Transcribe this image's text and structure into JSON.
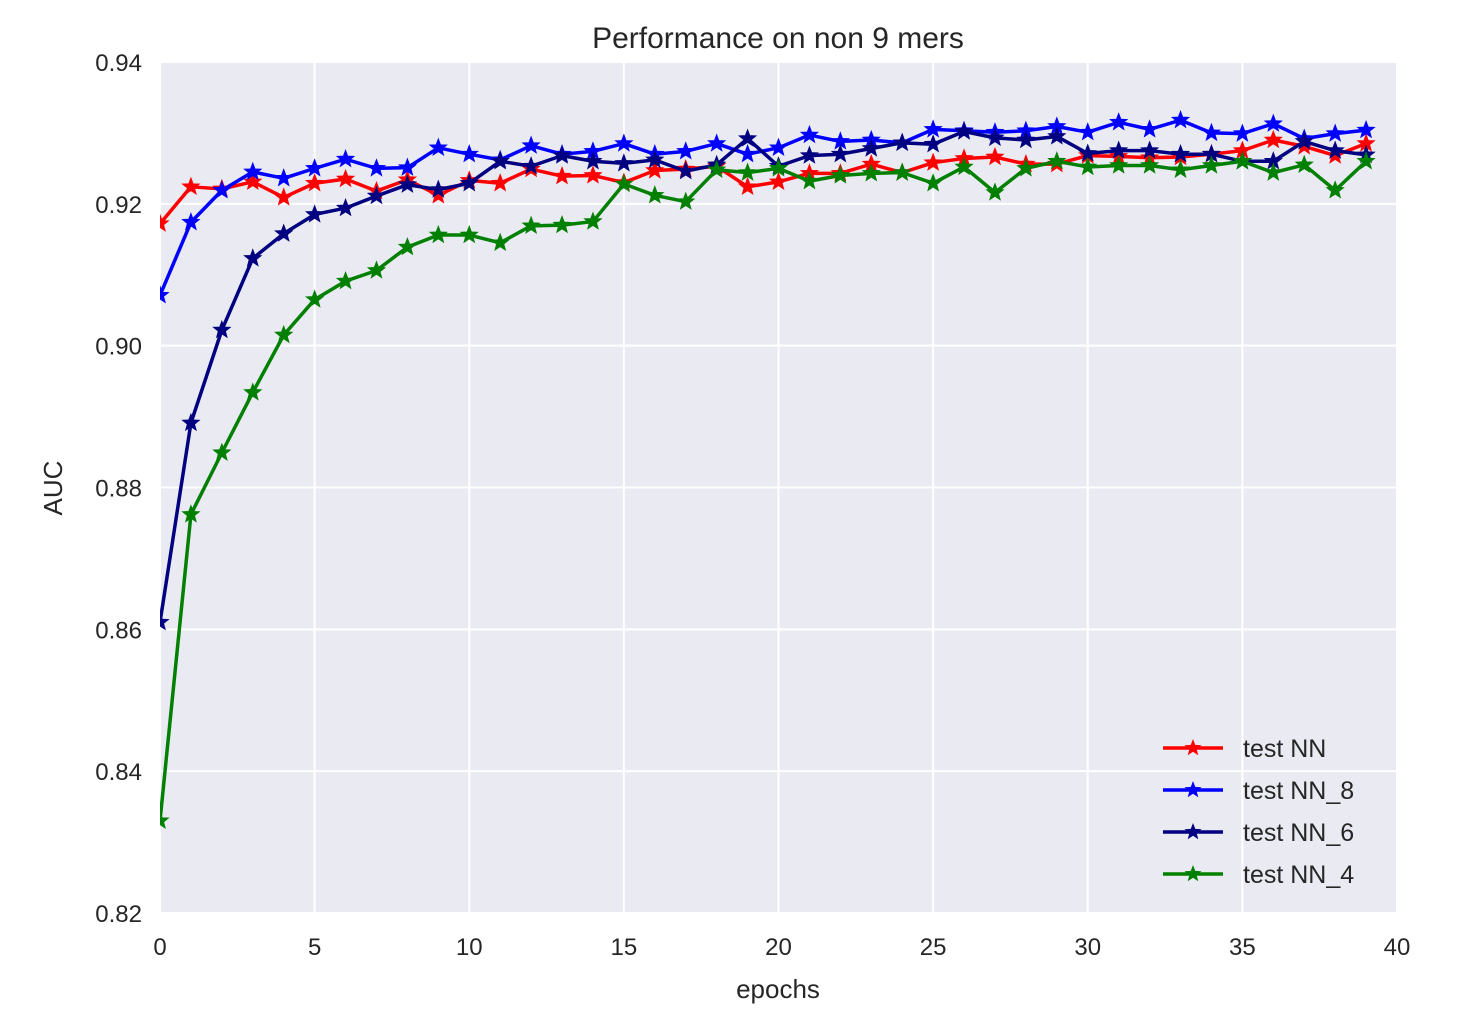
{
  "chart_data": {
    "type": "line",
    "title": "Performance on non 9 mers",
    "xlabel": "epochs",
    "ylabel": "AUC",
    "xlim": [
      0,
      40
    ],
    "ylim": [
      0.82,
      0.94
    ],
    "xticks": [
      0,
      5,
      10,
      15,
      20,
      25,
      30,
      35,
      40
    ],
    "yticks": [
      0.82,
      0.84,
      0.86,
      0.88,
      0.9,
      0.92,
      0.94
    ],
    "xtick_labels": [
      "0",
      "5",
      "10",
      "15",
      "20",
      "25",
      "30",
      "35",
      "40"
    ],
    "ytick_labels": [
      "0.82",
      "0.84",
      "0.86",
      "0.88",
      "0.90",
      "0.92",
      "0.94"
    ],
    "grid": true,
    "legend_position": "bottom-right",
    "marker": "star",
    "x": [
      0,
      1,
      2,
      3,
      4,
      5,
      6,
      7,
      8,
      9,
      10,
      11,
      12,
      13,
      14,
      15,
      16,
      17,
      18,
      19,
      20,
      21,
      22,
      23,
      24,
      25,
      26,
      27,
      28,
      29,
      30,
      31,
      32,
      33,
      34,
      35,
      36,
      37,
      38,
      39
    ],
    "series": [
      {
        "name": "test NN",
        "color": "#ff0000",
        "values": [
          0.9172,
          0.9224,
          0.9221,
          0.9231,
          0.9209,
          0.9229,
          0.9235,
          0.9218,
          0.9234,
          0.9212,
          0.9233,
          0.9229,
          0.9249,
          0.9239,
          0.924,
          0.923,
          0.9247,
          0.9249,
          0.9253,
          0.9224,
          0.9231,
          0.9243,
          0.9243,
          0.9256,
          0.9244,
          0.9258,
          0.9264,
          0.9266,
          0.9256,
          0.9256,
          0.9268,
          0.9267,
          0.9265,
          0.9266,
          0.927,
          0.9275,
          0.929,
          0.9281,
          0.9268,
          0.9285
        ]
      },
      {
        "name": "test NN_8",
        "color": "#0000ff",
        "values": [
          0.9071,
          0.9174,
          0.9219,
          0.9245,
          0.9236,
          0.925,
          0.9263,
          0.925,
          0.9251,
          0.9279,
          0.927,
          0.9262,
          0.9282,
          0.927,
          0.9274,
          0.9285,
          0.927,
          0.9274,
          0.9285,
          0.927,
          0.9279,
          0.9297,
          0.9288,
          0.929,
          0.9286,
          0.9305,
          0.9303,
          0.9301,
          0.9303,
          0.9309,
          0.9301,
          0.9315,
          0.9305,
          0.9318,
          0.93,
          0.9299,
          0.9313,
          0.9292,
          0.9299,
          0.9304
        ]
      },
      {
        "name": "test NN_6",
        "color": "#000080",
        "values": [
          0.861,
          0.8891,
          0.9022,
          0.9123,
          0.9158,
          0.9185,
          0.9194,
          0.9211,
          0.9227,
          0.922,
          0.9229,
          0.926,
          0.9253,
          0.9268,
          0.926,
          0.9257,
          0.9262,
          0.9246,
          0.9255,
          0.9292,
          0.9253,
          0.9268,
          0.927,
          0.9278,
          0.9286,
          0.9284,
          0.9302,
          0.9293,
          0.929,
          0.9295,
          0.9271,
          0.9275,
          0.9275,
          0.927,
          0.927,
          0.926,
          0.926,
          0.9288,
          0.9275,
          0.9269
        ]
      },
      {
        "name": "test NN_4",
        "color": "#008000",
        "values": [
          0.833,
          0.8762,
          0.8849,
          0.8934,
          0.9015,
          0.9065,
          0.9091,
          0.9106,
          0.9139,
          0.9156,
          0.9156,
          0.9145,
          0.9169,
          0.917,
          0.9175,
          0.9228,
          0.9212,
          0.9203,
          0.9248,
          0.9244,
          0.925,
          0.9232,
          0.924,
          0.9243,
          0.9244,
          0.9229,
          0.9252,
          0.9216,
          0.925,
          0.926,
          0.9252,
          0.9254,
          0.9254,
          0.9248,
          0.9254,
          0.926,
          0.9244,
          0.9255,
          0.9219,
          0.926
        ]
      }
    ]
  }
}
